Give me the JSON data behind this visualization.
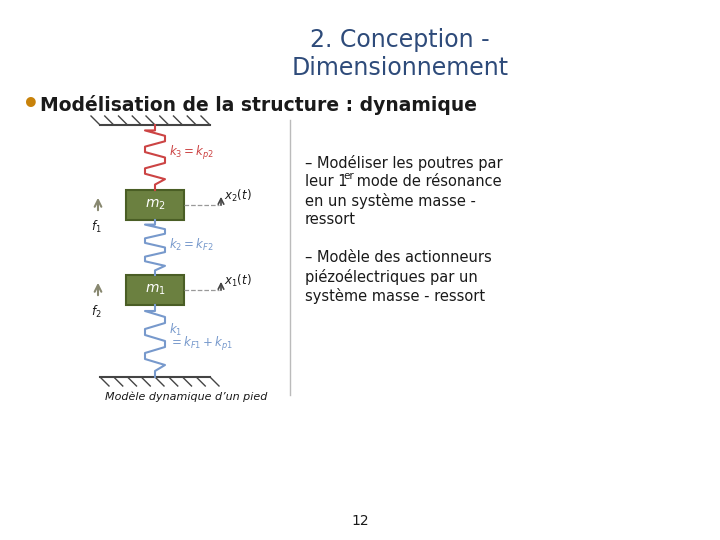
{
  "title_line1": "2. Conception -",
  "title_line2": "Dimensionnement",
  "title_color": "#2E4B7A",
  "bullet_text": "Modélisation de la structure : dynamique",
  "bullet_color": "#1a1a1a",
  "bullet_dot_color": "#C8820A",
  "text1_dash": "–",
  "text1_line1": " Modéliser les poutres par",
  "text1_line2_a": "leur 1",
  "text1_sup": "er",
  "text1_line2_b": " mode de résonance",
  "text1_line3": "en un système masse -",
  "text1_line4": "ressort",
  "text2_dash": "–",
  "text2_line1": " Modèle des actionneurs",
  "text2_line2": "piézoélectriques par un",
  "text2_line3": "système masse - ressort",
  "caption": "Modèle dynamique d’un pied",
  "page_num": "12",
  "text_color": "#1a1a1a",
  "bg_color": "#FFFFFF",
  "divider_color": "#BBBBBB",
  "spring_red_color": "#CC4444",
  "spring_blue_color": "#7799CC",
  "mass_box_color": "#6B8040",
  "mass_box_edge": "#4a5e25",
  "hatch_color": "#444444",
  "force_arrow_color": "#888870",
  "dashed_line_color": "#999999",
  "k_text_color": "#CC4444",
  "k2_text_color": "#7799CC",
  "k1_text_color": "#7799CC",
  "arc_color": "#C8AA60"
}
